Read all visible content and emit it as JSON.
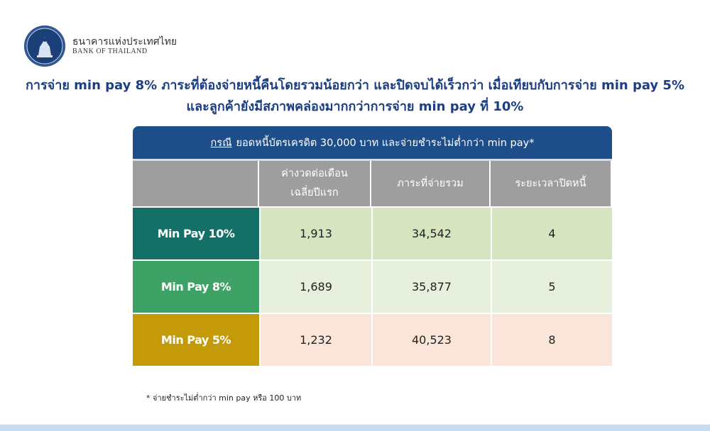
{
  "org": {
    "name_th": "ธนาคารแห่งประเทศไทย",
    "name_en": "BANK OF THAILAND"
  },
  "headline": {
    "line1": "การจ่าย min pay 8% ภาระที่ต้องจ่ายหนี้คืนโดยรวมน้อยกว่า และปิดจบได้เร็วกว่า เมื่อเทียบกับการจ่าย min pay 5%",
    "line2": "และลูกค้ายังมีสภาพคล่องมากกว่าการจ่าย min pay ที่ 10%"
  },
  "table": {
    "banner_underlined": "กรณี",
    "banner_rest": "ยอดหนี้บัตรเครดิต 30,000 บาท และจ่ายชำระไม่ต่ำกว่า min pay*",
    "headers": {
      "monthly_line1": "ค่างวดต่อเดือน",
      "monthly_line2": "เฉลี่ยปีแรก",
      "total": "ภาระที่จ่ายรวม",
      "duration": "ระยะเวลาปิดหนี้"
    },
    "rows": [
      {
        "label": "Min Pay 10%",
        "monthly": "1,913",
        "total": "34,542",
        "years": "4"
      },
      {
        "label": "Min Pay 8%",
        "monthly": "1,689",
        "total": "35,877",
        "years": "5"
      },
      {
        "label": "Min Pay 5%",
        "monthly": "1,232",
        "total": "40,523",
        "years": "8"
      }
    ]
  },
  "footnote": "* จ่ายชำระไม่ต่ำกว่า min pay หรือ 100 บาท",
  "colors": {
    "title": "#1c3f82",
    "banner": "#1d4e8a",
    "row1_label": "#147067",
    "row2_label": "#3ea165",
    "row3_label": "#c49a09"
  }
}
